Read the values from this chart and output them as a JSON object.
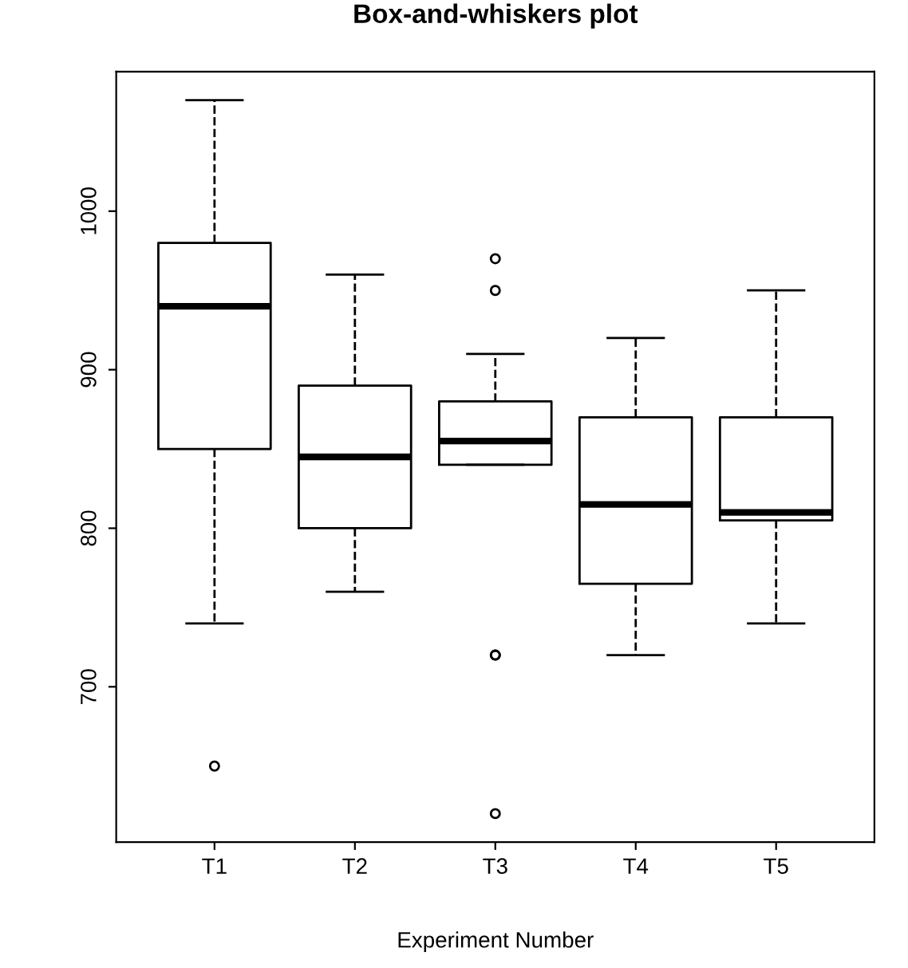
{
  "chart_data": {
    "type": "box",
    "title": "Box-and-whiskers plot",
    "xlabel": "Experiment Number",
    "categories": [
      "T1",
      "T2",
      "T3",
      "T4",
      "T5"
    ],
    "boxes": [
      {
        "low": 740,
        "q1": 850,
        "median": 940,
        "q3": 980,
        "high": 1070,
        "outliers": [
          650
        ]
      },
      {
        "low": 760,
        "q1": 800,
        "median": 845,
        "q3": 890,
        "high": 960
      },
      {
        "low": 840,
        "q1": 840,
        "median": 855,
        "q3": 880,
        "high": 910,
        "outliers": [
          620,
          720,
          720,
          950,
          970
        ]
      },
      {
        "low": 720,
        "q1": 765,
        "median": 815,
        "q3": 870,
        "high": 920
      },
      {
        "low": 740,
        "q1": 805,
        "median": 810,
        "q3": 870,
        "high": 950
      }
    ],
    "ylim": [
      602,
      1088
    ],
    "yticks": [
      700,
      800,
      900,
      1000
    ],
    "grid": false,
    "line_style": "dashed",
    "marker": "circle"
  }
}
